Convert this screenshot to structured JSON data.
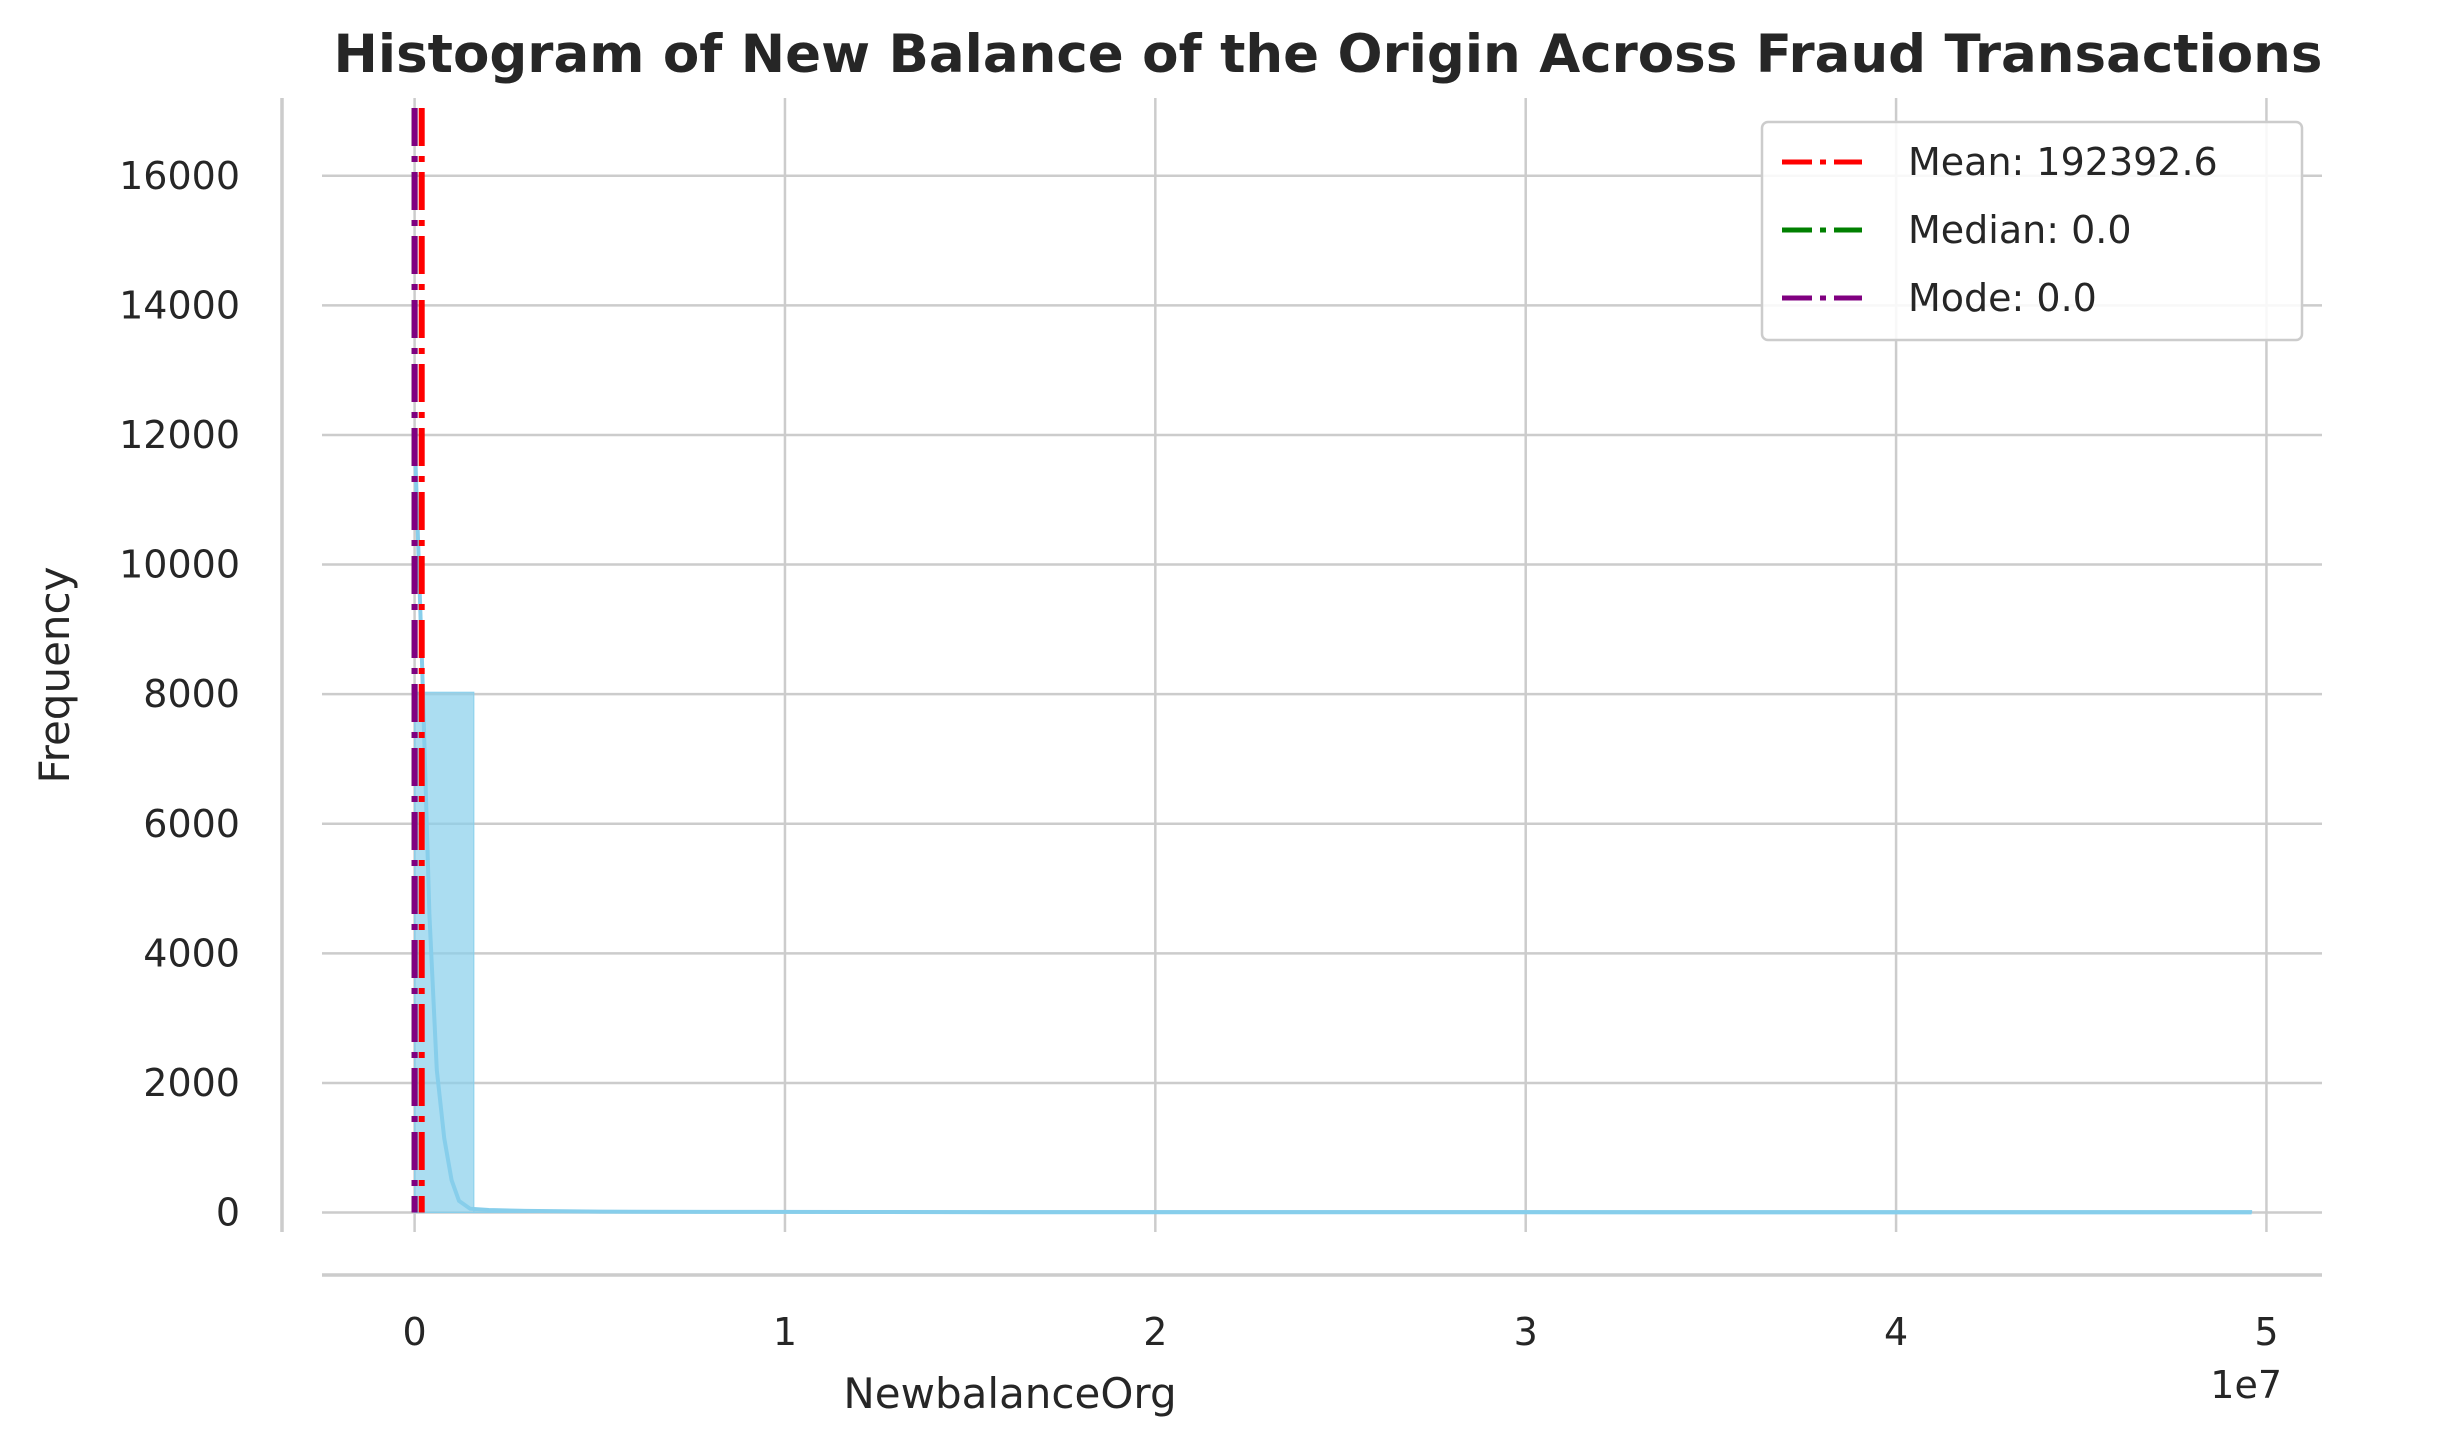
{
  "chart_data": {
    "type": "bar",
    "title": "Histogram of New Balance of the Origin Across Fraud Transactions",
    "xlabel": "NewbalanceOrg",
    "ylabel": "Frequency",
    "x_offset_label": "1e7",
    "xlim": [
      -0.25,
      5.15
    ],
    "ylim": [
      -300,
      17200
    ],
    "x_ticks": [
      0,
      1,
      2,
      3,
      4,
      5
    ],
    "y_ticks": [
      0,
      2000,
      4000,
      6000,
      8000,
      10000,
      12000,
      14000,
      16000
    ],
    "grid": true,
    "bin_width": 0.16,
    "bins": [
      {
        "x0": 0.0,
        "x1": 0.16,
        "value": 8030
      },
      {
        "x0": 0.16,
        "x1": 4.96,
        "value": 30
      }
    ],
    "kde": {
      "x": [
        0.0,
        0.02,
        0.04,
        0.06,
        0.08,
        0.1,
        0.12,
        0.15,
        0.2,
        0.3,
        0.5,
        0.8,
        1.2,
        1.6,
        2.0,
        3.0,
        4.0,
        4.96
      ],
      "y": [
        12000,
        8500,
        4600,
        2200,
        1150,
        500,
        180,
        60,
        40,
        25,
        15,
        10,
        8,
        6,
        5,
        4,
        3,
        3
      ]
    },
    "color": "#87ceeb",
    "lines": [
      {
        "label": "Mean: 192392.6",
        "x": 0.0192,
        "color": "#ff0000"
      },
      {
        "label": "Median: 0.0",
        "x": 0.0,
        "color": "#008000"
      },
      {
        "label": "Mode: 0.0",
        "x": 0.0,
        "color": "#800080"
      }
    ],
    "legend_position": "upper right"
  }
}
